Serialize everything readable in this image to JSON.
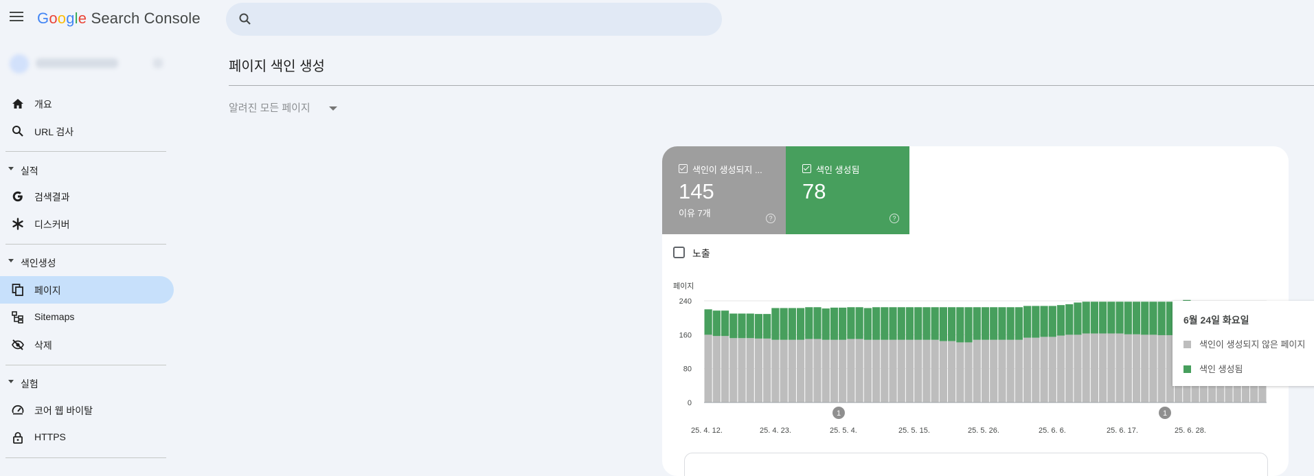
{
  "app": {
    "logo_letters": [
      "G",
      "o",
      "o",
      "g",
      "l",
      "e"
    ],
    "product": "Search Console"
  },
  "search": {
    "placeholder": ""
  },
  "sidebar": {
    "items_top": [
      {
        "label": "개요",
        "icon": "home-icon"
      },
      {
        "label": "URL 검사",
        "icon": "search-icon"
      }
    ],
    "sections": [
      {
        "title": "실적",
        "items": [
          {
            "label": "검색결과",
            "icon": "google-g-icon"
          },
          {
            "label": "디스커버",
            "icon": "asterisk-icon"
          }
        ]
      },
      {
        "title": "색인생성",
        "items": [
          {
            "label": "페이지",
            "icon": "pages-icon",
            "active": true
          },
          {
            "label": "Sitemaps",
            "icon": "sitemap-icon"
          },
          {
            "label": "삭제",
            "icon": "eye-off-icon"
          }
        ]
      },
      {
        "title": "실험",
        "items": [
          {
            "label": "코어 웹 바이탈",
            "icon": "gauge-icon"
          },
          {
            "label": "HTTPS",
            "icon": "lock-icon"
          }
        ]
      }
    ]
  },
  "main": {
    "title": "페이지 색인 생성",
    "filter_label": "알려진 모든 페이지"
  },
  "tiles": [
    {
      "title": "색인이 생성되지 ...",
      "value": "145",
      "sub": "이유 7개",
      "color": "#9e9e9e"
    },
    {
      "title": "색인 생성됨",
      "value": "78",
      "sub": "",
      "color": "#479f5d"
    }
  ],
  "impressions_label": "노출",
  "tooltip": {
    "date": "6월 24일 화요일",
    "rows": [
      {
        "label": "색인이 생성되지 않은 페이지",
        "color": "#bdbdbd"
      },
      {
        "label": "색인 생성됨",
        "color": "#479f5d"
      }
    ]
  },
  "chart_data": {
    "type": "bar",
    "stacked": true,
    "ylabel": "페이지",
    "ylim": [
      0,
      240
    ],
    "yticks": [
      0,
      80,
      160,
      240
    ],
    "xtick_labels": [
      "25. 4. 12.",
      "25. 4. 23.",
      "25. 5. 4.",
      "25. 5. 15.",
      "25. 5. 26.",
      "25. 6. 6.",
      "25. 6. 17.",
      "25. 6. 28."
    ],
    "annotations": [
      "1",
      "1"
    ],
    "series": [
      {
        "color": "#bdbdbd",
        "values": [
          160,
          157,
          157,
          152,
          152,
          152,
          151,
          151,
          148,
          148,
          148,
          148,
          150,
          150,
          148,
          148,
          148,
          150,
          150,
          148,
          148,
          148,
          148,
          148,
          148,
          148,
          148,
          148,
          145,
          145,
          142,
          142,
          148,
          148,
          148,
          148,
          148,
          148,
          153,
          153,
          155,
          155,
          158,
          160,
          160,
          163,
          163,
          163,
          163,
          163,
          161,
          161,
          160,
          160,
          159,
          159,
          159,
          159,
          158,
          158,
          158,
          158,
          158,
          158,
          158,
          158,
          158
        ]
      },
      {
        "color": "#479f5d",
        "values": [
          60,
          60,
          60,
          58,
          58,
          58,
          58,
          58,
          75,
          75,
          75,
          75,
          75,
          75,
          74,
          76,
          76,
          75,
          75,
          75,
          77,
          77,
          77,
          77,
          77,
          77,
          77,
          77,
          80,
          80,
          83,
          83,
          77,
          77,
          77,
          77,
          77,
          77,
          75,
          75,
          73,
          73,
          72,
          72,
          76,
          75,
          75,
          75,
          75,
          75,
          77,
          77,
          78,
          78,
          79,
          79,
          79,
          83,
          70,
          70,
          70,
          70,
          70,
          70,
          70,
          68,
          68
        ]
      }
    ]
  }
}
